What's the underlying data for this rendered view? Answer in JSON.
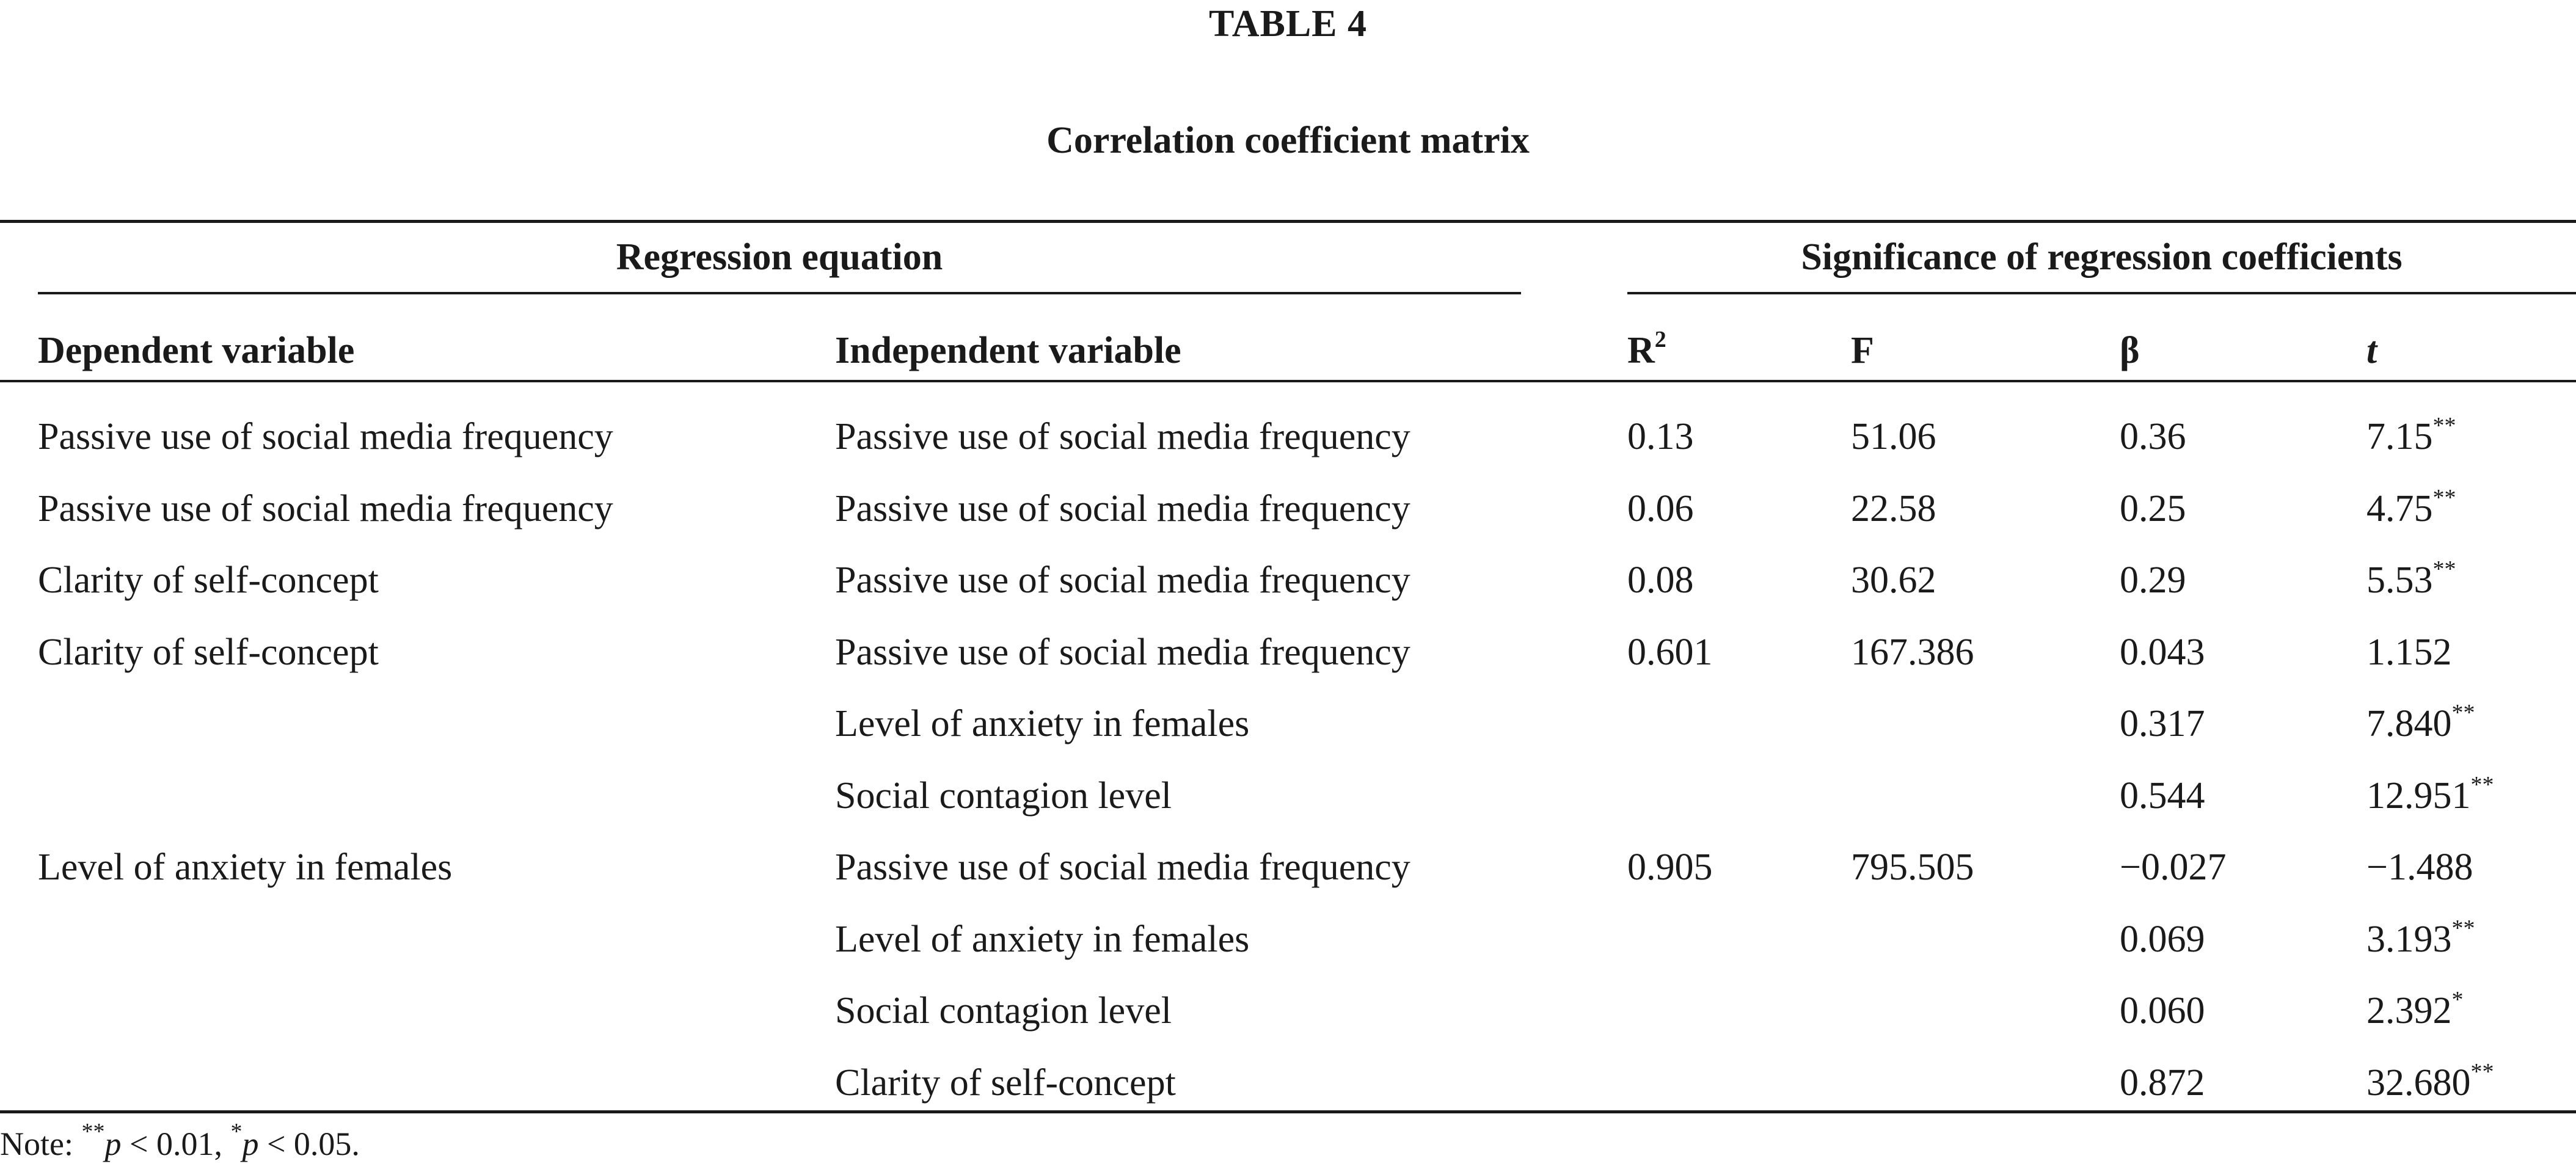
{
  "table": {
    "label": "TABLE 4",
    "title": "Correlation coefficient matrix",
    "group_headers": {
      "regression": "Regression equation",
      "significance": "Significance of regression coefficients"
    },
    "columns": {
      "dependent": "Dependent variable",
      "independent": "Independent variable",
      "r2_base": "R",
      "r2_sup": "2",
      "f": "F",
      "beta": "β",
      "t": "t"
    },
    "rows": [
      {
        "dep": "Passive use of social media frequency",
        "indep": "Passive use of social media frequency",
        "r2": "0.13",
        "f": "51.06",
        "beta": "0.36",
        "t": "7.15",
        "sig": "**"
      },
      {
        "dep": "Passive use of social media frequency",
        "indep": "Passive use of social media frequency",
        "r2": "0.06",
        "f": "22.58",
        "beta": "0.25",
        "t": "4.75",
        "sig": "**"
      },
      {
        "dep": "Clarity of self-concept",
        "indep": "Passive use of social media frequency",
        "r2": "0.08",
        "f": "30.62",
        "beta": "0.29",
        "t": "5.53",
        "sig": "**"
      },
      {
        "dep": "Clarity of self-concept",
        "indep": "Passive use of social media frequency",
        "r2": "0.601",
        "f": "167.386",
        "beta": "0.043",
        "t": "1.152",
        "sig": ""
      },
      {
        "dep": "",
        "indep": "Level of anxiety in females",
        "r2": "",
        "f": "",
        "beta": "0.317",
        "t": "7.840",
        "sig": "**"
      },
      {
        "dep": "",
        "indep": "Social contagion level",
        "r2": "",
        "f": "",
        "beta": "0.544",
        "t": "12.951",
        "sig": "**"
      },
      {
        "dep": "Level of anxiety in females",
        "indep": "Passive use of social media frequency",
        "r2": "0.905",
        "f": "795.505",
        "beta": "−0.027",
        "t": "−1.488",
        "sig": ""
      },
      {
        "dep": "",
        "indep": "Level of anxiety in females",
        "r2": "",
        "f": "",
        "beta": "0.069",
        "t": "3.193",
        "sig": "**"
      },
      {
        "dep": "",
        "indep": "Social contagion level",
        "r2": "",
        "f": "",
        "beta": "0.060",
        "t": "2.392",
        "sig": "*"
      },
      {
        "dep": "",
        "indep": "Clarity of self-concept",
        "r2": "",
        "f": "",
        "beta": "0.872",
        "t": "32.680",
        "sig": "**"
      }
    ],
    "note": {
      "prefix": "Note: ",
      "sig1": "**",
      "p1": "p",
      "cond1": " < 0.01, ",
      "sig2": "*",
      "p2": "p",
      "cond2": " < 0.05."
    }
  }
}
